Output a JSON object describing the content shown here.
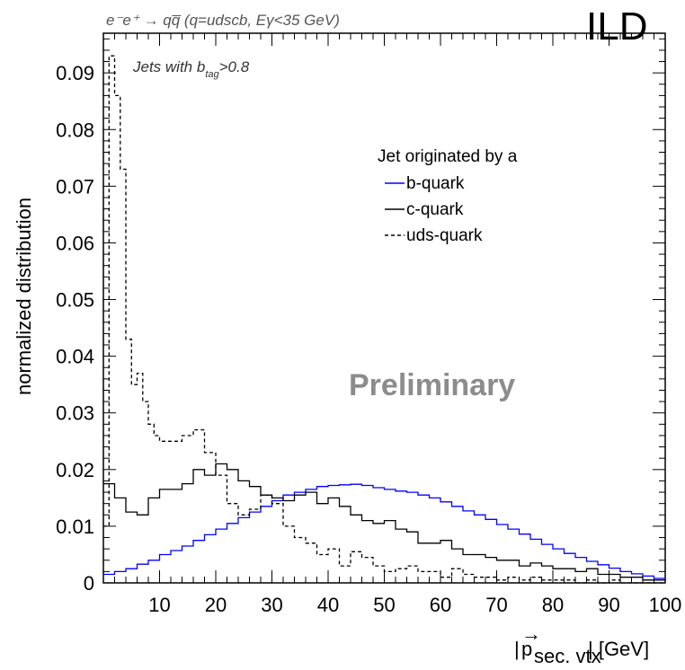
{
  "chart_data": {
    "type": "line",
    "process": "e⁻e⁺ → qq̅ (q=udscb, Eγ<35 GeV)",
    "experiment": "ILD",
    "selection": "Jets with b_tag>0.8",
    "selection_text": "Jets with b",
    "selection_sub": "tag",
    "selection_cut": ">0.8",
    "watermark": "Preliminary",
    "xlabel": "|p⃗ sec. vtx| [GeV]",
    "xlabel_sub": "sec. vtx",
    "xlabel_unit": "| [GeV]",
    "ylabel": "normalized distribution",
    "xlim": [
      0,
      100
    ],
    "ylim": [
      0,
      0.097
    ],
    "x_ticks": [
      10,
      20,
      30,
      40,
      50,
      60,
      70,
      80,
      90,
      100
    ],
    "y_ticks": [
      0,
      0.01,
      0.02,
      0.03,
      0.04,
      0.05,
      0.06,
      0.07,
      0.08,
      0.09
    ],
    "y_tick_labels": [
      "0",
      "0.01",
      "0.02",
      "0.03",
      "0.04",
      "0.05",
      "0.06",
      "0.07",
      "0.08",
      "0.09"
    ],
    "bin_width": 1,
    "legend": {
      "title": "Jet originated by a",
      "position": "top-right",
      "entries": [
        "b-quark",
        "c-quark",
        "uds-quark"
      ]
    },
    "series": [
      {
        "name": "b-quark",
        "color": "#0000ff",
        "style": "solid",
        "x": [
          0,
          2,
          4,
          6,
          8,
          10,
          12,
          14,
          16,
          18,
          20,
          22,
          24,
          26,
          28,
          30,
          32,
          34,
          36,
          38,
          40,
          42,
          44,
          46,
          48,
          50,
          52,
          54,
          56,
          58,
          60,
          62,
          64,
          66,
          68,
          70,
          72,
          74,
          76,
          78,
          80,
          82,
          84,
          86,
          88,
          90,
          92,
          94,
          96,
          98,
          100
        ],
        "y": [
          0.0015,
          0.002,
          0.0025,
          0.0033,
          0.004,
          0.005,
          0.0057,
          0.0065,
          0.0075,
          0.0085,
          0.0095,
          0.0105,
          0.0115,
          0.0125,
          0.0135,
          0.0145,
          0.0155,
          0.016,
          0.0165,
          0.017,
          0.0172,
          0.0173,
          0.0174,
          0.0172,
          0.0168,
          0.0165,
          0.0162,
          0.016,
          0.0155,
          0.015,
          0.0143,
          0.0135,
          0.0127,
          0.012,
          0.0112,
          0.0103,
          0.0095,
          0.0086,
          0.0077,
          0.0068,
          0.006,
          0.0052,
          0.0045,
          0.0038,
          0.0032,
          0.0026,
          0.002,
          0.0016,
          0.0012,
          0.0008,
          0.0006
        ]
      },
      {
        "name": "c-quark",
        "color": "#000000",
        "style": "solid",
        "x": [
          0,
          2,
          4,
          6,
          8,
          10,
          12,
          14,
          16,
          18,
          20,
          22,
          24,
          26,
          28,
          30,
          32,
          34,
          36,
          38,
          40,
          42,
          44,
          46,
          48,
          50,
          52,
          54,
          56,
          58,
          60,
          62,
          64,
          66,
          68,
          70,
          72,
          74,
          76,
          78,
          80,
          82,
          84,
          86,
          88,
          90,
          92,
          94,
          96,
          98,
          100
        ],
        "y": [
          0.0175,
          0.015,
          0.0125,
          0.012,
          0.015,
          0.0165,
          0.0165,
          0.0175,
          0.02,
          0.019,
          0.021,
          0.02,
          0.018,
          0.017,
          0.0155,
          0.015,
          0.0145,
          0.0155,
          0.016,
          0.014,
          0.015,
          0.0135,
          0.012,
          0.011,
          0.0105,
          0.011,
          0.0095,
          0.009,
          0.007,
          0.007,
          0.0075,
          0.006,
          0.005,
          0.005,
          0.0045,
          0.004,
          0.004,
          0.003,
          0.0035,
          0.003,
          0.0025,
          0.0025,
          0.002,
          0.0025,
          0.0015,
          0.0015,
          0.001,
          0.001,
          0.0005,
          0.0005,
          0.0005
        ]
      },
      {
        "name": "uds-quark",
        "color": "#000000",
        "style": "dashed",
        "x": [
          0,
          1,
          2,
          3,
          4,
          5,
          6,
          7,
          8,
          9,
          10,
          12,
          14,
          16,
          18,
          20,
          22,
          24,
          26,
          28,
          30,
          32,
          34,
          36,
          38,
          40,
          42,
          44,
          46,
          48,
          50,
          52,
          54,
          56,
          58,
          60,
          62,
          64,
          66,
          68,
          70,
          72,
          74,
          76,
          78,
          80,
          82,
          84,
          86,
          88,
          90,
          92,
          94,
          96,
          98,
          100
        ],
        "y": [
          0.01,
          0.093,
          0.086,
          0.073,
          0.043,
          0.035,
          0.037,
          0.032,
          0.028,
          0.026,
          0.025,
          0.025,
          0.026,
          0.027,
          0.023,
          0.019,
          0.014,
          0.012,
          0.013,
          0.0155,
          0.014,
          0.01,
          0.008,
          0.007,
          0.005,
          0.006,
          0.003,
          0.0055,
          0.0045,
          0.003,
          0.002,
          0.0025,
          0.003,
          0.002,
          0.002,
          0.001,
          0.0025,
          0.0015,
          0.001,
          0.001,
          0.0005,
          0.001,
          0.0005,
          0.001,
          0.0005,
          0.0005,
          0.0005,
          0.0,
          0.0005,
          0.0,
          0.0005,
          0.0,
          0.0,
          0.0,
          0.0,
          0.0
        ]
      }
    ]
  }
}
